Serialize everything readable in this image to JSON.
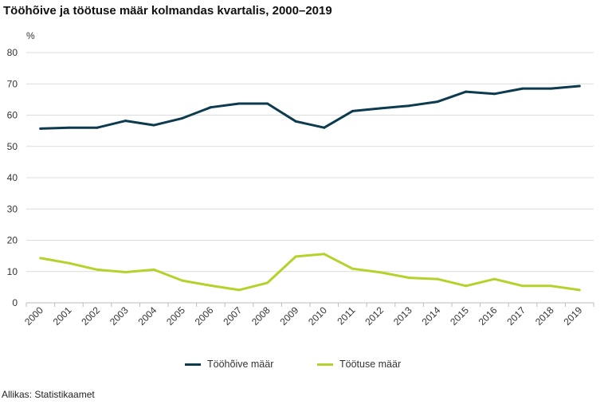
{
  "chart_data": {
    "type": "line",
    "title": "Tööhõive ja töötuse määr kolmandas kvartalis, 2000–2019",
    "ylabel": "%",
    "xlabel": "",
    "ylim": [
      0,
      80
    ],
    "y_ticks": [
      0,
      10,
      20,
      30,
      40,
      50,
      60,
      70,
      80
    ],
    "grid": true,
    "legend_position": "bottom",
    "categories": [
      "2000",
      "2001",
      "2002",
      "2003",
      "2004",
      "2005",
      "2006",
      "2007",
      "2008",
      "2009",
      "2010",
      "2011",
      "2012",
      "2013",
      "2014",
      "2015",
      "2016",
      "2017",
      "2018",
      "2019"
    ],
    "series": [
      {
        "name": "Tööhõive määr",
        "color": "#0c3a4e",
        "values": [
          55.7,
          56.0,
          56.0,
          58.2,
          56.8,
          59.0,
          62.5,
          63.7,
          63.7,
          58.0,
          56.0,
          61.3,
          62.2,
          63.0,
          64.3,
          67.5,
          66.8,
          68.5,
          68.5,
          69.3
        ]
      },
      {
        "name": "Töötuse määr",
        "color": "#b5d22a",
        "values": [
          14.3,
          12.7,
          10.6,
          9.8,
          10.6,
          7.1,
          5.5,
          4.1,
          6.4,
          14.8,
          15.6,
          10.9,
          9.7,
          8.0,
          7.6,
          5.4,
          7.6,
          5.4,
          5.4,
          4.1
        ]
      }
    ]
  },
  "source": "Allikas: Statistikaamet"
}
